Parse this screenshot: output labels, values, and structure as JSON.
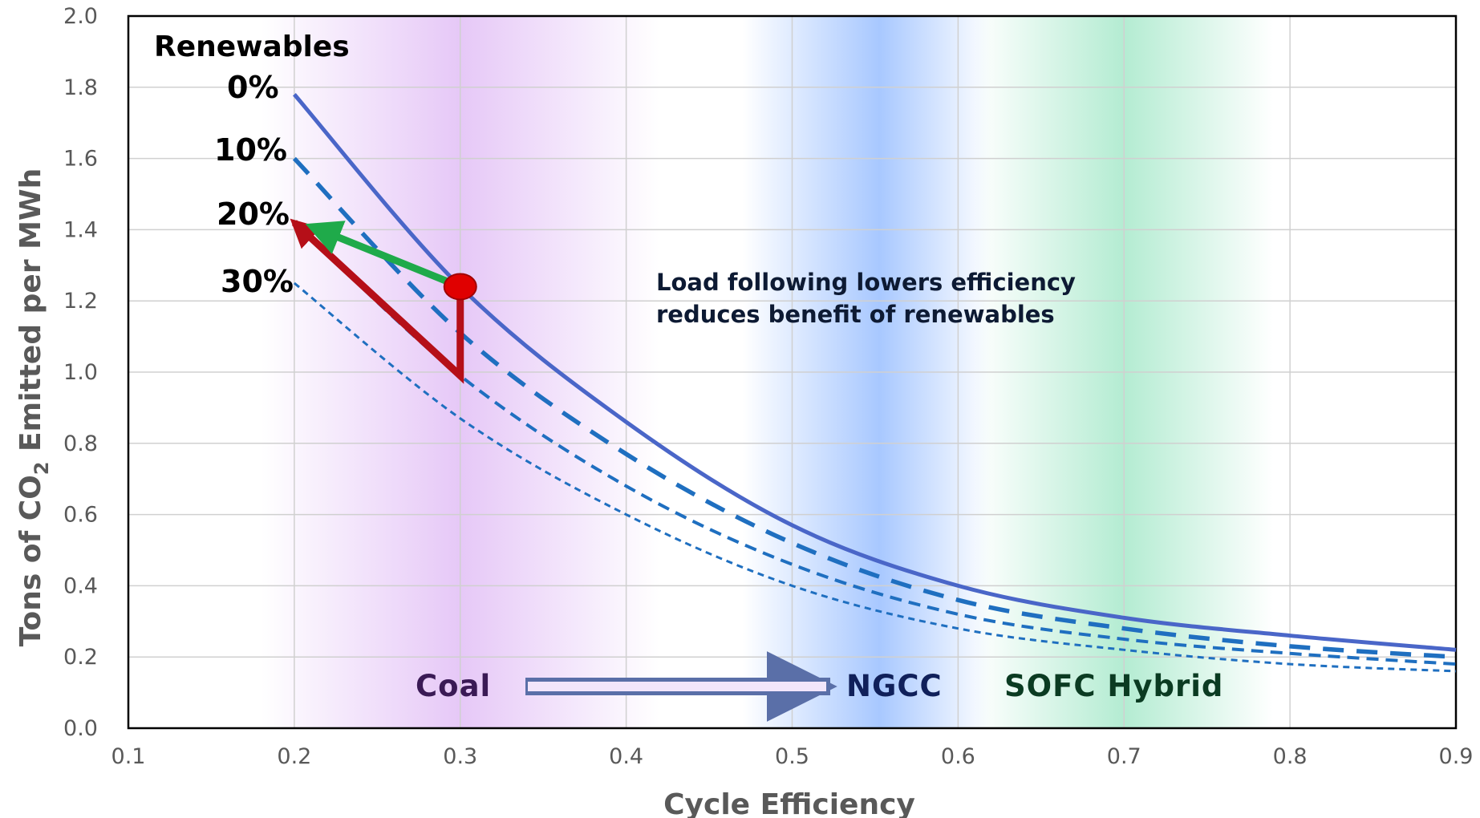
{
  "colors": {
    "coal_band": "#e6c8f7",
    "ngcc_band": "#a8c8ff",
    "sofc_band": "#b4ecd2",
    "curve": "#4a66c8",
    "dashed": "#1f6fc0",
    "green_arrow": "#1faa4a",
    "red_arrow": "#b50f18",
    "marker": "#e00000",
    "coal_text": "#3a1a55",
    "ngcc_text": "#10205a",
    "sofc_text": "#0b3b22"
  },
  "annotations": {
    "renewables_heading": "Renewables",
    "load_following_line1": "Load following lowers efficiency",
    "load_following_line2": "reduces benefit of renewables",
    "coal": "Coal",
    "ngcc": "NGCC",
    "sofc_hybrid": "SOFC Hybrid"
  },
  "chart_data": {
    "type": "line",
    "title": "",
    "xlabel": "Cycle Efficiency",
    "ylabel_parts": [
      "Tons of CO",
      "2",
      " Emitted per MWh"
    ],
    "xlim": [
      0.1,
      0.9
    ],
    "ylim": [
      0.0,
      2.0
    ],
    "x_ticks": [
      "0.1",
      "0.2",
      "0.3",
      "0.4",
      "0.5",
      "0.6",
      "0.7",
      "0.8",
      "0.9"
    ],
    "y_ticks": [
      "0.0",
      "0.2",
      "0.4",
      "0.6",
      "0.8",
      "1.0",
      "1.2",
      "1.4",
      "1.6",
      "1.8",
      "2.0"
    ],
    "grid": true,
    "series": [
      {
        "name": "0%",
        "style": "solid",
        "x": [
          0.2,
          0.3,
          0.4,
          0.5,
          0.6,
          0.7,
          0.8,
          0.9
        ],
        "y": [
          1.78,
          1.24,
          0.86,
          0.57,
          0.4,
          0.31,
          0.26,
          0.22
        ]
      },
      {
        "name": "10%",
        "style": "long-dash",
        "x": [
          0.2,
          0.3,
          0.4,
          0.5,
          0.6,
          0.7,
          0.8,
          0.9
        ],
        "y": [
          1.6,
          1.11,
          0.77,
          0.52,
          0.36,
          0.28,
          0.23,
          0.2
        ]
      },
      {
        "name": "20%",
        "style": "medium-dash",
        "x": [
          0.2,
          0.3,
          0.4,
          0.5,
          0.6,
          0.7,
          0.8,
          0.9
        ],
        "y": [
          1.42,
          0.99,
          0.68,
          0.46,
          0.32,
          0.25,
          0.21,
          0.18
        ]
      },
      {
        "name": "30%",
        "style": "short-dash",
        "x": [
          0.2,
          0.3,
          0.4,
          0.5,
          0.6,
          0.7,
          0.8,
          0.9
        ],
        "y": [
          1.25,
          0.87,
          0.6,
          0.4,
          0.28,
          0.22,
          0.18,
          0.16
        ]
      }
    ],
    "bands": [
      {
        "name": "Coal",
        "center": 0.3,
        "from": 0.18,
        "to": 0.42
      },
      {
        "name": "NGCC",
        "center": 0.54,
        "from": 0.47,
        "to": 0.62
      },
      {
        "name": "SOFC Hybrid",
        "center": 0.7,
        "from": 0.61,
        "to": 0.79
      }
    ],
    "marker_point": {
      "x": 0.3,
      "y": 1.24
    },
    "green_arrow": {
      "from": [
        0.3,
        1.24
      ],
      "to": [
        0.2,
        1.42
      ]
    },
    "red_path": [
      [
        0.3,
        1.24
      ],
      [
        0.3,
        0.99
      ],
      [
        0.2,
        1.42
      ]
    ]
  }
}
